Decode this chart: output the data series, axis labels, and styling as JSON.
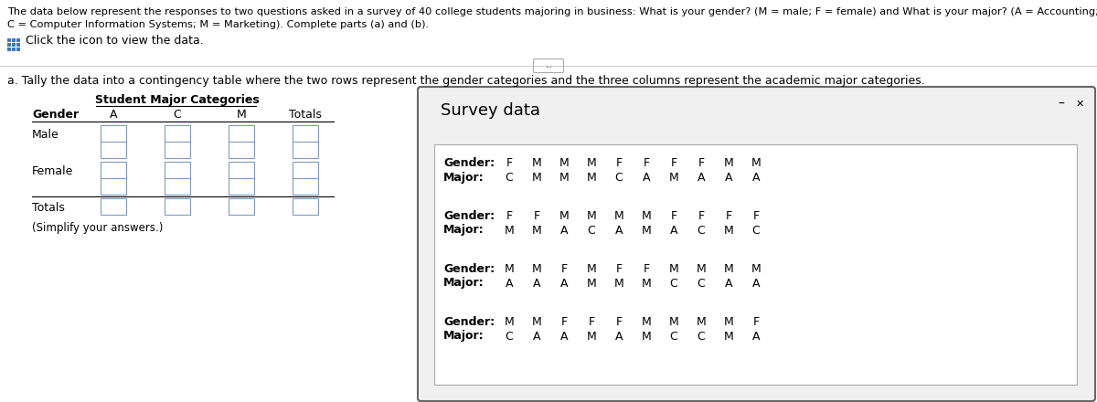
{
  "header_line1": "The data below represent the responses to two questions asked in a survey of 40 college students majoring in business: What is your gender? (M = male; F = female) and What is your major? (A = Accounting;",
  "header_line2": "C = Computer Information Systems; M = Marketing). Complete parts (a) and (b).",
  "click_text": "Click the icon to view the data.",
  "part_a_text": "a. Tally the data into a contingency table where the two rows represent the gender categories and the three columns represent the academic major categories.",
  "table_title": "Student Major Categories",
  "table_col_header": [
    "Gender",
    "A",
    "C",
    "M",
    "Totals"
  ],
  "table_rows": [
    "Male",
    "Female",
    "Totals"
  ],
  "simplify_text": "(Simplify your answers.)",
  "survey_title": "Survey data",
  "survey_rows": [
    {
      "label": "Gender:",
      "values": [
        "F",
        "M",
        "M",
        "M",
        "F",
        "F",
        "F",
        "F",
        "M",
        "M"
      ]
    },
    {
      "label": "Major:",
      "values": [
        "C",
        "M",
        "M",
        "M",
        "C",
        "A",
        "M",
        "A",
        "A",
        "A"
      ]
    },
    {
      "label": "Gender:",
      "values": [
        "F",
        "F",
        "M",
        "M",
        "M",
        "M",
        "F",
        "F",
        "F",
        "F"
      ]
    },
    {
      "label": "Major:",
      "values": [
        "M",
        "M",
        "A",
        "C",
        "A",
        "M",
        "A",
        "C",
        "M",
        "C"
      ]
    },
    {
      "label": "Gender:",
      "values": [
        "M",
        "M",
        "F",
        "M",
        "F",
        "F",
        "M",
        "M",
        "M",
        "M"
      ]
    },
    {
      "label": "Major:",
      "values": [
        "A",
        "A",
        "A",
        "M",
        "M",
        "M",
        "C",
        "C",
        "A",
        "A"
      ]
    },
    {
      "label": "Gender:",
      "values": [
        "M",
        "M",
        "F",
        "F",
        "F",
        "M",
        "M",
        "M",
        "M",
        "F"
      ]
    },
    {
      "label": "Major:",
      "values": [
        "C",
        "A",
        "A",
        "M",
        "A",
        "M",
        "C",
        "C",
        "M",
        "A"
      ]
    }
  ],
  "bg_color": "#ffffff",
  "text_color": "#000000",
  "grid_icon_color": "#4472c4",
  "box_edge_color": "#7a9cc4",
  "survey_box_border": "#666666",
  "inner_box_border": "#aaaaaa",
  "font_size_header": 8.2,
  "font_size_body": 9.0,
  "font_size_table": 9.0,
  "font_size_survey_label": 9.0,
  "font_size_survey_val": 9.0,
  "font_size_survey_title": 13.0,
  "dots_text": "..."
}
